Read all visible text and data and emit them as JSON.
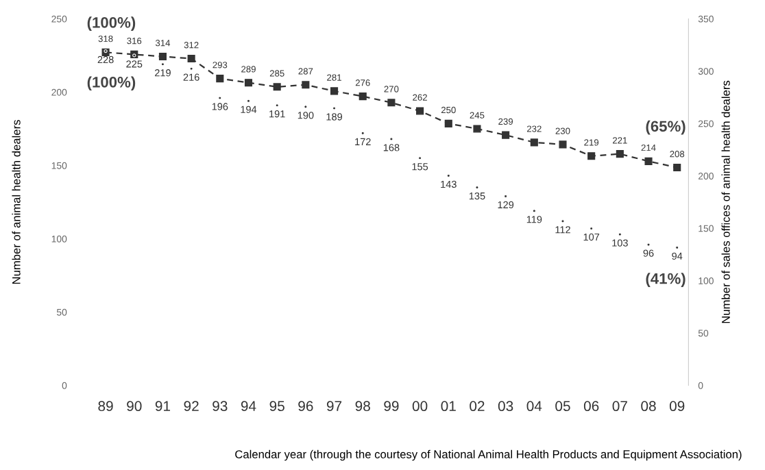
{
  "chart_data": {
    "type": "line",
    "categories": [
      "89",
      "90",
      "91",
      "92",
      "93",
      "94",
      "95",
      "96",
      "97",
      "98",
      "99",
      "00",
      "01",
      "02",
      "03",
      "04",
      "05",
      "06",
      "07",
      "08",
      "09"
    ],
    "series": [
      {
        "type": "scatter",
        "marker": "none",
        "color": "#333333",
        "values": [
          228,
          225,
          219,
          216,
          196,
          194,
          191,
          190,
          189,
          172,
          168,
          155,
          143,
          135,
          129,
          119,
          112,
          107,
          103,
          96,
          94
        ]
      },
      {
        "axis": "y2",
        "marker": "square",
        "line_style": "dashed",
        "color": "#333333",
        "values": [
          318,
          316,
          314,
          312,
          293,
          289,
          285,
          287,
          281,
          276,
          270,
          262,
          250,
          245,
          239,
          232,
          230,
          219,
          221,
          214,
          208
        ]
      }
    ],
    "ylabel": "Number of animal health dealers",
    "y2label": "Number of sales offices of animal health dealers",
    "xlabel": "Calendar year (through the courtesy of National Animal Health Products and Equipment Association)",
    "ylim": [
      0,
      250
    ],
    "yticks": [
      0,
      50,
      100,
      150,
      200,
      250
    ],
    "y2lim": [
      0,
      350
    ],
    "y2ticks": [
      0,
      50,
      100,
      150,
      200,
      250,
      300,
      350
    ],
    "data_labels": true,
    "annotations": [
      "(100%)",
      "(100%)",
      "(65%)",
      "(41%)"
    ],
    "grid": false,
    "legend": false
  }
}
